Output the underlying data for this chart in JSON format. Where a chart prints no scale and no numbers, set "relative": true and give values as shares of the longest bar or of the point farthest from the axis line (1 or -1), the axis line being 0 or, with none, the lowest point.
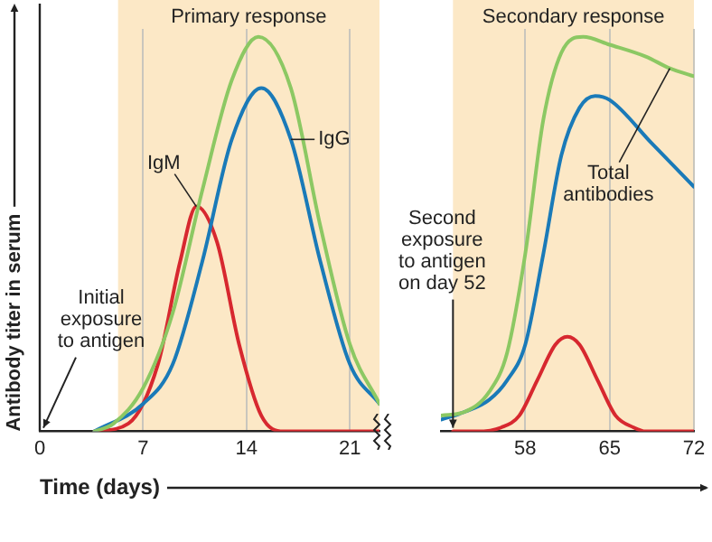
{
  "chart_data": [
    {
      "type": "line",
      "relative": true,
      "xlabel": "Time (days)",
      "ylabel": "Antibody titer in serum",
      "xlim": [
        0,
        23
      ],
      "xticks": [
        0,
        7,
        14,
        21
      ],
      "grid": "x",
      "bands": [
        {
          "axis": "x",
          "from": 5.3,
          "to": 23,
          "label": "Primary response",
          "color": "#fce8c6"
        }
      ],
      "annotations": [
        "Initial exposure to antigen"
      ],
      "series": [
        {
          "color": "#8cc863",
          "x": [
            3.7,
            5,
            7,
            9,
            11,
            13,
            14.8,
            17,
            19,
            21,
            23
          ],
          "values": [
            0,
            0.02,
            0.11,
            0.3,
            0.61,
            0.89,
            1,
            0.87,
            0.52,
            0.22,
            0.07
          ]
        },
        {
          "name": "IgG",
          "color": "#1a7ab8",
          "x": [
            3.7,
            7,
            9,
            11,
            13,
            15,
            17,
            19,
            21,
            23
          ],
          "values": [
            0,
            0.07,
            0.17,
            0.43,
            0.74,
            0.87,
            0.74,
            0.43,
            0.17,
            0.07
          ]
        },
        {
          "name": "IgM",
          "color": "#d7282f",
          "x": [
            3.7,
            6,
            8,
            9.5,
            10.6,
            12,
            13.5,
            15,
            16.5,
            23
          ],
          "values": [
            0,
            0.02,
            0.17,
            0.43,
            0.57,
            0.48,
            0.22,
            0.04,
            0,
            0
          ]
        }
      ]
    },
    {
      "type": "line",
      "relative": true,
      "xlim": [
        51,
        72
      ],
      "xticks": [
        58,
        65,
        72
      ],
      "grid": "x",
      "bands": [
        {
          "axis": "x",
          "from": 52,
          "to": 72,
          "label": "Secondary response",
          "color": "#fce8c6"
        }
      ],
      "annotations": [
        {
          "text": "Second exposure to antigen on day 52",
          "x": 52,
          "y": 0
        }
      ],
      "series": [
        {
          "name": "Total antibodies",
          "color": "#8cc863",
          "x": [
            51,
            53,
            55,
            56.5,
            58,
            59.5,
            61,
            62.8,
            65,
            68,
            70,
            72
          ],
          "values": [
            0.04,
            0.05,
            0.1,
            0.2,
            0.45,
            0.79,
            0.96,
            1,
            0.98,
            0.95,
            0.92,
            0.9
          ]
        },
        {
          "color": "#1a7ab8",
          "x": [
            51,
            53,
            55,
            56.5,
            58,
            59.5,
            61,
            62.5,
            63.8,
            65,
            68.5,
            72
          ],
          "values": [
            0.03,
            0.05,
            0.08,
            0.13,
            0.22,
            0.45,
            0.7,
            0.82,
            0.85,
            0.84,
            0.73,
            0.62
          ]
        },
        {
          "color": "#d7282f",
          "x": [
            52,
            54,
            56,
            57.5,
            59,
            60.5,
            61.5,
            62.5,
            64,
            65.5,
            67,
            68,
            72
          ],
          "values": [
            0,
            0,
            0.01,
            0.04,
            0.13,
            0.22,
            0.24,
            0.22,
            0.13,
            0.04,
            0.01,
            0,
            0
          ]
        }
      ]
    }
  ]
}
